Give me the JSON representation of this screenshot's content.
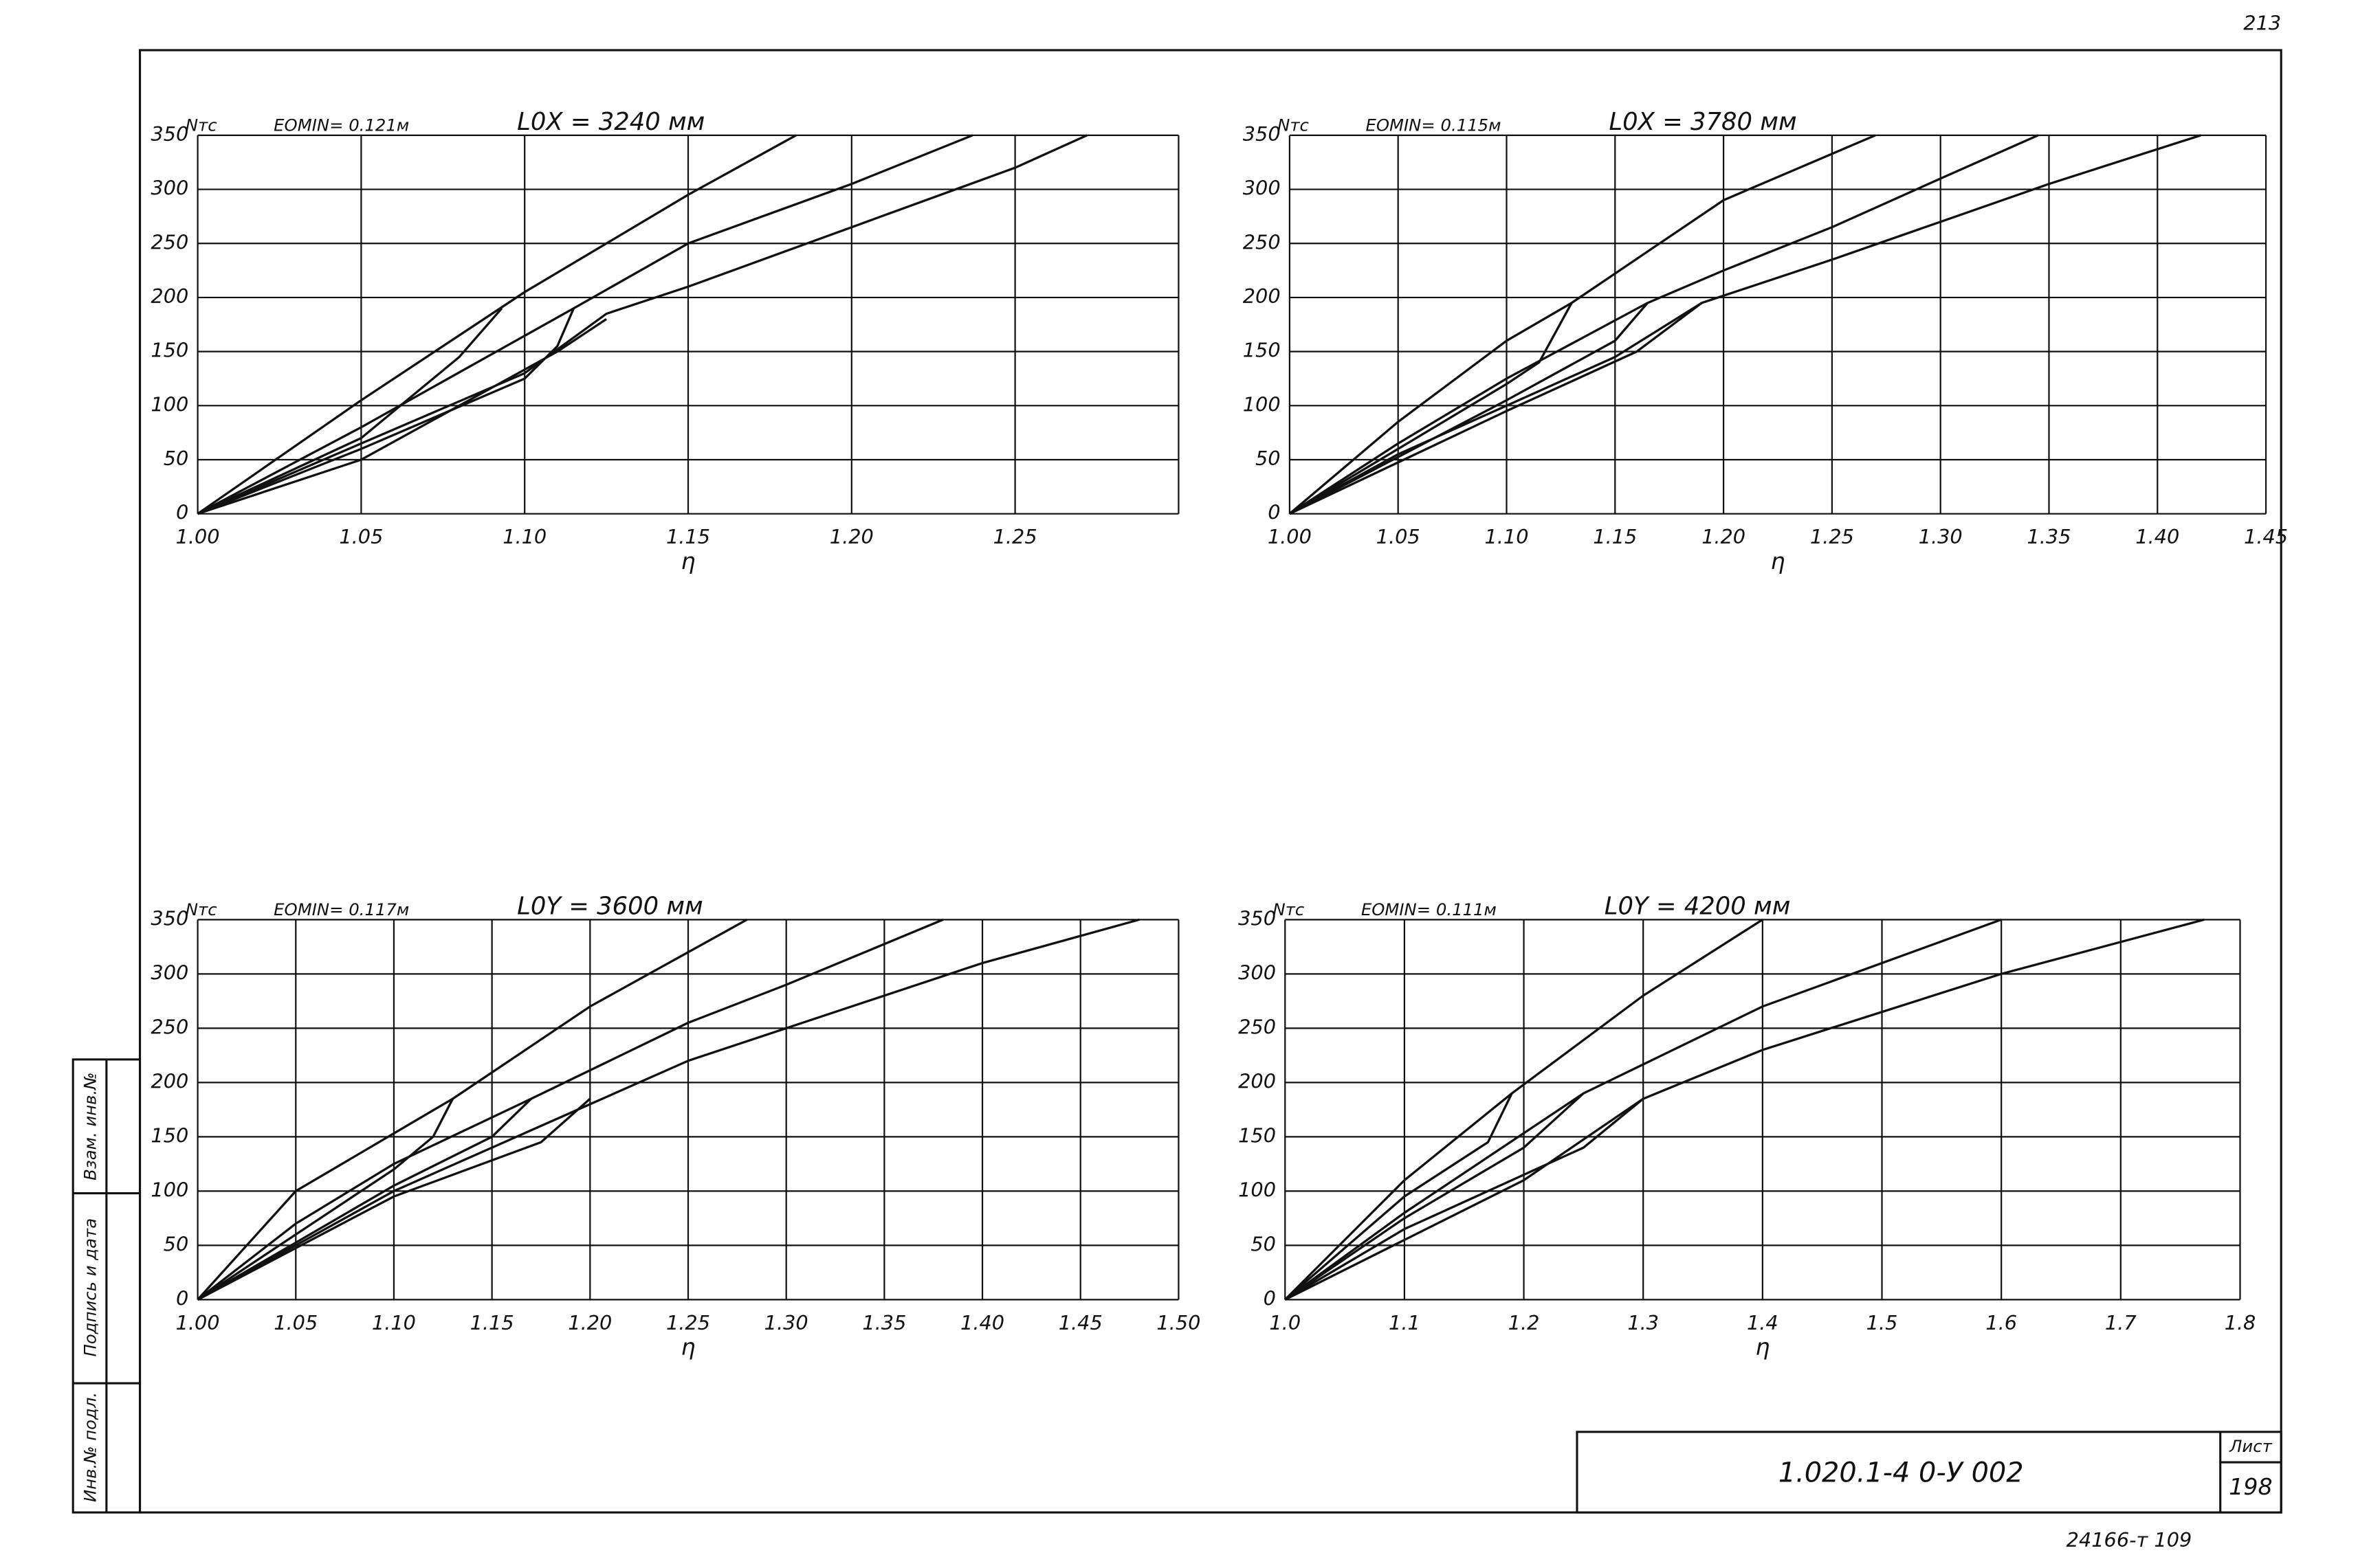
{
  "page_number": "213",
  "chart_data": [
    {
      "type": "line",
      "y_label": "Nтс",
      "subtitle": "EOMIN= 0.121м",
      "title": "L0X = 3240 мм",
      "x_label": "η",
      "xlim": [
        1.0,
        1.3
      ],
      "ylim": [
        0,
        350
      ],
      "grid": true,
      "color": "#111111",
      "xticks": [
        {
          "value": 1.0,
          "label": "1.00"
        },
        {
          "value": 1.05,
          "label": "1.05"
        },
        {
          "value": 1.1,
          "label": "1.10"
        },
        {
          "value": 1.15,
          "label": "1.15"
        },
        {
          "value": 1.2,
          "label": "1.20"
        },
        {
          "value": 1.25,
          "label": "1.25"
        },
        {
          "value": 1.3,
          "label": null
        }
      ],
      "yticks": [
        0,
        50,
        100,
        150,
        200,
        250,
        300,
        350
      ],
      "series": [
        {
          "x": [
            1.0,
            1.05,
            1.1,
            1.15,
            1.183
          ],
          "values": [
            0,
            105,
            205,
            295,
            350
          ]
        },
        {
          "x": [
            1.0,
            1.05,
            1.115,
            1.15,
            1.2,
            1.237
          ],
          "values": [
            0,
            80,
            190,
            250,
            305,
            350
          ]
        },
        {
          "x": [
            1.0,
            1.05,
            1.1,
            1.125,
            1.15,
            1.2,
            1.25,
            1.272
          ],
          "values": [
            0,
            65,
            130,
            185,
            210,
            265,
            320,
            350
          ]
        },
        {
          "x": [
            1.0,
            1.05,
            1.08,
            1.093
          ],
          "values": [
            0,
            70,
            145,
            190
          ]
        },
        {
          "x": [
            1.0,
            1.05,
            1.1,
            1.11,
            1.115
          ],
          "values": [
            0,
            60,
            125,
            155,
            190
          ]
        },
        {
          "x": [
            1.0,
            1.05,
            1.11,
            1.125
          ],
          "values": [
            0,
            50,
            150,
            180
          ]
        }
      ]
    },
    {
      "type": "line",
      "y_label": "Nтс",
      "subtitle": "EOMIN= 0.115м",
      "title": "L0X = 3780 мм",
      "x_label": "η",
      "xlim": [
        1.0,
        1.45
      ],
      "ylim": [
        0,
        350
      ],
      "grid": true,
      "color": "#111111",
      "xticks": [
        {
          "value": 1.0,
          "label": "1.00"
        },
        {
          "value": 1.05,
          "label": "1.05"
        },
        {
          "value": 1.1,
          "label": "1.10"
        },
        {
          "value": 1.15,
          "label": "1.15"
        },
        {
          "value": 1.2,
          "label": "1.20"
        },
        {
          "value": 1.25,
          "label": "1.25"
        },
        {
          "value": 1.3,
          "label": "1.30"
        },
        {
          "value": 1.35,
          "label": "1.35"
        },
        {
          "value": 1.4,
          "label": "1.40"
        },
        1.45
      ],
      "yticks": [
        0,
        50,
        100,
        150,
        200,
        250,
        300,
        350
      ],
      "series": [
        {
          "x": [
            1.0,
            1.05,
            1.1,
            1.13,
            1.2,
            1.27
          ],
          "values": [
            0,
            85,
            160,
            195,
            290,
            350
          ]
        },
        {
          "x": [
            1.0,
            1.05,
            1.1,
            1.165,
            1.2,
            1.25,
            1.3,
            1.345
          ],
          "values": [
            0,
            65,
            125,
            195,
            225,
            265,
            310,
            350
          ]
        },
        {
          "x": [
            1.0,
            1.05,
            1.1,
            1.15,
            1.19,
            1.25,
            1.3,
            1.35,
            1.42
          ],
          "values": [
            0,
            55,
            100,
            145,
            195,
            235,
            270,
            305,
            350
          ]
        },
        {
          "x": [
            1.0,
            1.1,
            1.115,
            1.13
          ],
          "values": [
            0,
            120,
            140,
            195
          ]
        },
        {
          "x": [
            1.0,
            1.1,
            1.15,
            1.165
          ],
          "values": [
            0,
            105,
            160,
            195
          ]
        },
        {
          "x": [
            1.0,
            1.1,
            1.16,
            1.19
          ],
          "values": [
            0,
            95,
            150,
            195
          ]
        }
      ]
    },
    {
      "type": "line",
      "y_label": "Nтс",
      "subtitle": "EOMIN= 0.117м",
      "title": "L0Y = 3600 мм",
      "x_label": "η",
      "xlim": [
        1.0,
        1.5
      ],
      "ylim": [
        0,
        350
      ],
      "grid": true,
      "color": "#111111",
      "xticks": [
        {
          "value": 1.0,
          "label": "1.00"
        },
        {
          "value": 1.05,
          "label": "1.05"
        },
        {
          "value": 1.1,
          "label": "1.10"
        },
        {
          "value": 1.15,
          "label": "1.15"
        },
        {
          "value": 1.2,
          "label": "1.20"
        },
        {
          "value": 1.25,
          "label": "1.25"
        },
        {
          "value": 1.3,
          "label": "1.30"
        },
        {
          "value": 1.35,
          "label": "1.35"
        },
        {
          "value": 1.4,
          "label": "1.40"
        },
        {
          "value": 1.45,
          "label": "1.45"
        },
        {
          "value": 1.5,
          "label": "1.50"
        }
      ],
      "yticks": [
        0,
        50,
        100,
        150,
        200,
        250,
        300,
        350
      ],
      "series": [
        {
          "x": [
            1.0,
            1.05,
            1.13,
            1.2,
            1.25,
            1.28
          ],
          "values": [
            0,
            100,
            185,
            270,
            320,
            350
          ]
        },
        {
          "x": [
            1.0,
            1.05,
            1.1,
            1.17,
            1.25,
            1.3,
            1.38
          ],
          "values": [
            0,
            70,
            125,
            185,
            255,
            290,
            350
          ]
        },
        {
          "x": [
            1.0,
            1.1,
            1.2,
            1.25,
            1.3,
            1.4,
            1.48
          ],
          "values": [
            0,
            100,
            180,
            220,
            250,
            310,
            350
          ]
        },
        {
          "x": [
            1.0,
            1.1,
            1.12,
            1.13
          ],
          "values": [
            0,
            120,
            150,
            185
          ]
        },
        {
          "x": [
            1.0,
            1.1,
            1.15,
            1.17
          ],
          "values": [
            0,
            105,
            150,
            185
          ]
        },
        {
          "x": [
            1.0,
            1.1,
            1.175,
            1.2
          ],
          "values": [
            0,
            95,
            145,
            185
          ]
        }
      ]
    },
    {
      "type": "line",
      "y_label": "Nтс",
      "subtitle": "EOMIN= 0.111м",
      "title": "L0Y = 4200 мм",
      "x_label": "η",
      "xlim": [
        1.0,
        1.8
      ],
      "ylim": [
        0,
        350
      ],
      "grid": true,
      "color": "#111111",
      "xticks": [
        {
          "value": 1.0,
          "label": "1.0"
        },
        1.1,
        1.2,
        1.3,
        1.4,
        1.5,
        1.6,
        1.7,
        1.8
      ],
      "yticks": [
        0,
        50,
        100,
        150,
        200,
        250,
        300,
        350
      ],
      "series": [
        {
          "x": [
            1.0,
            1.1,
            1.19,
            1.3,
            1.4
          ],
          "values": [
            0,
            110,
            190,
            280,
            350
          ]
        },
        {
          "x": [
            1.0,
            1.1,
            1.25,
            1.4,
            1.5,
            1.6
          ],
          "values": [
            0,
            80,
            190,
            270,
            310,
            350
          ]
        },
        {
          "x": [
            1.0,
            1.1,
            1.2,
            1.3,
            1.4,
            1.6,
            1.77
          ],
          "values": [
            0,
            55,
            110,
            185,
            230,
            300,
            350
          ]
        },
        {
          "x": [
            1.0,
            1.1,
            1.17,
            1.19
          ],
          "values": [
            0,
            95,
            145,
            190
          ]
        },
        {
          "x": [
            1.0,
            1.1,
            1.2,
            1.25
          ],
          "values": [
            0,
            75,
            140,
            190
          ]
        },
        {
          "x": [
            1.0,
            1.1,
            1.25,
            1.3
          ],
          "values": [
            0,
            65,
            140,
            185
          ]
        }
      ]
    }
  ],
  "title_block": {
    "code": "1.020.1-4   0-У   002",
    "sheet_label": "Лист",
    "sheet": "198"
  },
  "stamps": [
    "Взам. инв.№",
    "Подпись и дата",
    "Инв.№ подл."
  ],
  "footer": "24166-т   109"
}
